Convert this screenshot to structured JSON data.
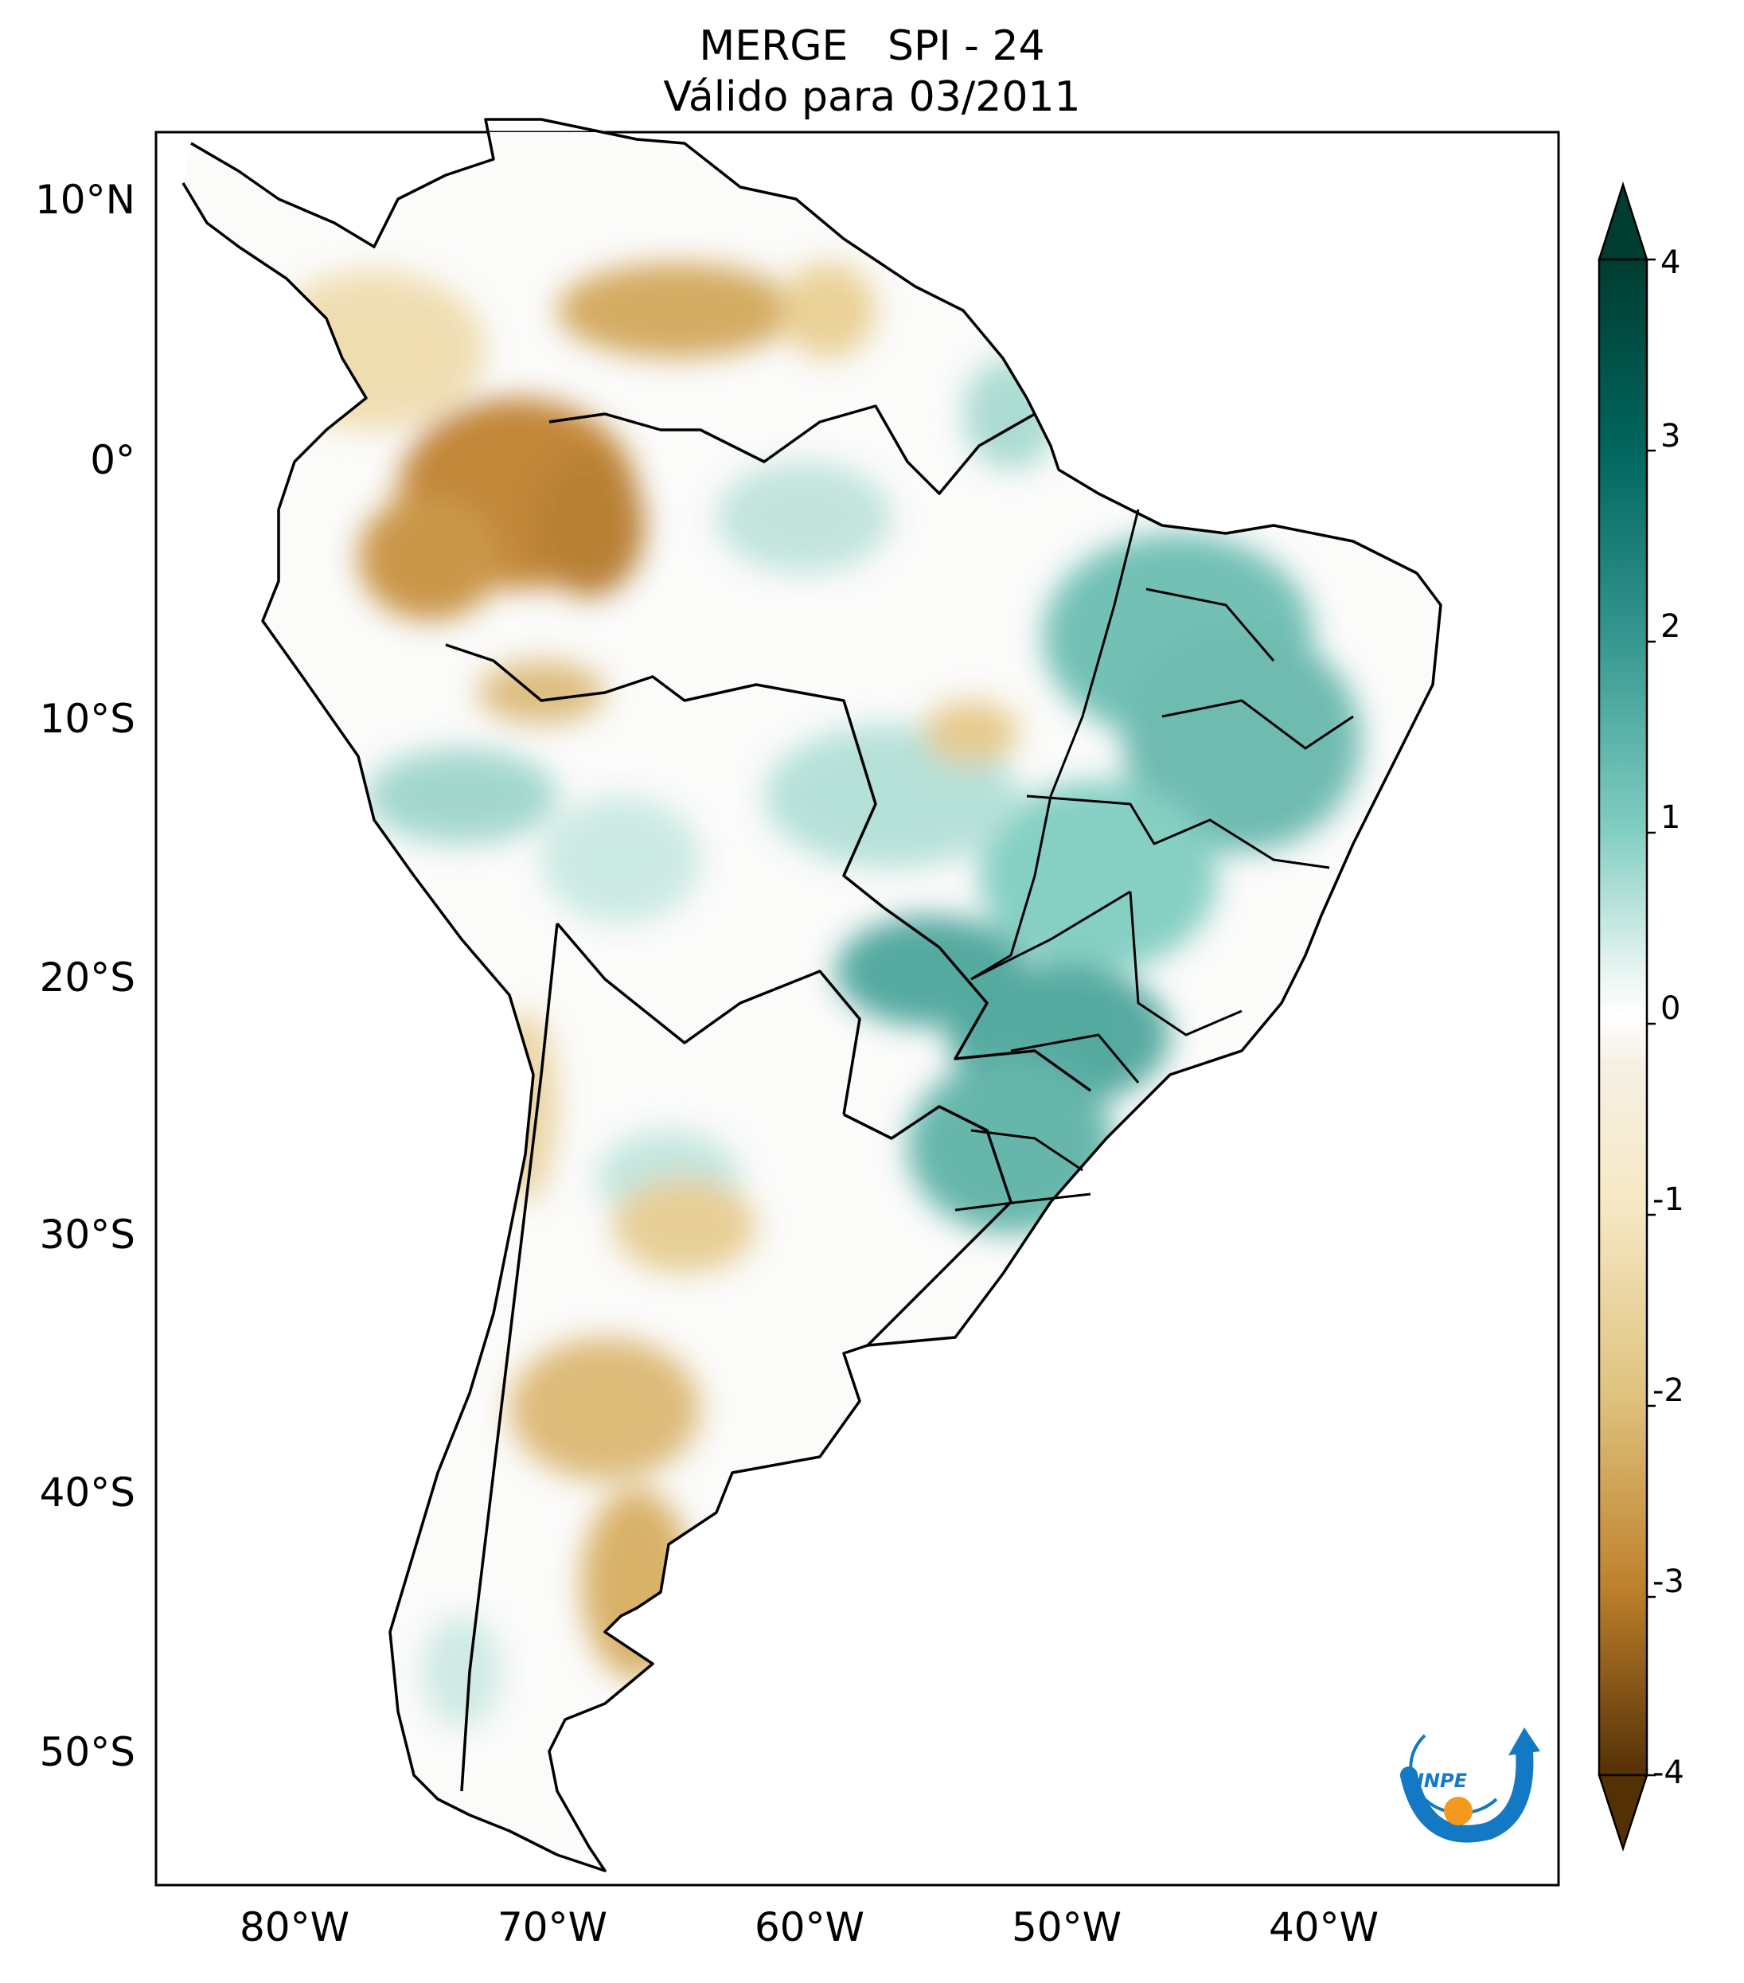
{
  "title": {
    "line1": "MERGE   SPI - 24",
    "line2": "Válido para 03/2011"
  },
  "map": {
    "lat_ticks": [
      "10°N",
      "0°",
      "10°S",
      "20°S",
      "30°S",
      "40°S",
      "50°S"
    ],
    "lon_ticks": [
      "80°W",
      "70°W",
      "60°W",
      "50°W",
      "40°W"
    ],
    "border_color": "#000000"
  },
  "colorbar": {
    "ticks": [
      "4",
      "3",
      "2",
      "1",
      "0",
      "-1",
      "-2",
      "-3",
      "-4"
    ],
    "colors": [
      "#003c30",
      "#01665e",
      "#35978f",
      "#80cdc1",
      "#c7eae5",
      "#f5f5f5",
      "#f6e8c3",
      "#dfc27d",
      "#bf812d",
      "#8c510a",
      "#543005"
    ]
  },
  "logo": {
    "text": "INPE",
    "colors": {
      "blue": "#1479c4",
      "orange": "#f39a1e"
    }
  }
}
